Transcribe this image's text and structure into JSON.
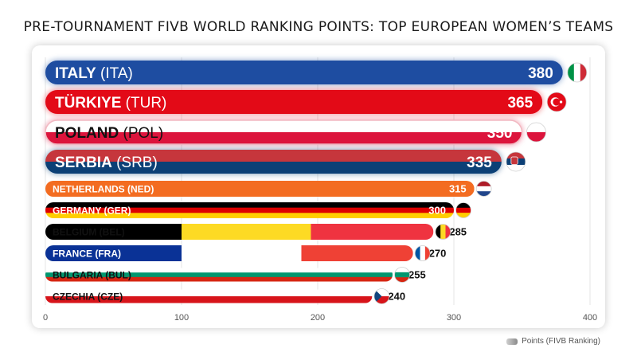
{
  "title": "PRE-TOURNAMENT FIVB WORLD RANKING POINTS: TOP EUROPEAN WOMEN’S TEAMS",
  "legend": {
    "label": "Points (FIVB Ranking)"
  },
  "chart_data": {
    "type": "bar",
    "orientation": "horizontal",
    "title": "PRE-TOURNAMENT FIVB WORLD RANKING POINTS: TOP EUROPEAN WOMEN’S TEAMS",
    "xlabel": "",
    "ylabel": "",
    "xlim": [
      0,
      400
    ],
    "xticks": [
      0,
      100,
      200,
      300,
      400
    ],
    "grid": true,
    "legend_position": "bottom-right",
    "series": [
      {
        "name": "Points (FIVB Ranking)",
        "values": [
          380,
          365,
          350,
          335,
          315,
          300,
          285,
          270,
          255,
          240
        ]
      }
    ],
    "bars": [
      {
        "name": "ITALY",
        "code": "(ITA)",
        "value": 380,
        "flag": "italy-flag-icon",
        "colors": [
          "#1e4da1"
        ],
        "flagColors": [
          "#009246",
          "#ffffff",
          "#ce2b37"
        ]
      },
      {
        "name": "TÜRKIYE",
        "code": "(TUR)",
        "value": 365,
        "flag": "turkiye-flag-icon",
        "colors": [
          "#e30a17"
        ],
        "flagColors": [
          "#e30a17"
        ]
      },
      {
        "name": "POLAND",
        "code": "(POL)",
        "value": 350,
        "flag": "poland-flag-icon",
        "colors": [
          "#ffffff",
          "#dc143c"
        ],
        "flagColors": [
          "#ffffff",
          "#dc143c"
        ]
      },
      {
        "name": "SERBIA",
        "code": "(SRB)",
        "value": 335,
        "flag": "serbia-flag-icon",
        "colors": [
          "#c6363c",
          "#0c4076"
        ],
        "flagColors": [
          "#c6363c",
          "#0c4076",
          "#ffffff"
        ]
      },
      {
        "name": "NETHERLANDS",
        "code": "(NED)",
        "value": 315,
        "flag": "netherlands-flag-icon",
        "colors": [
          "#f36c21"
        ],
        "flagColors": [
          "#ae1c28",
          "#ffffff",
          "#21468b"
        ]
      },
      {
        "name": "GERMANY",
        "code": "(GER)",
        "value": 300,
        "flag": "germany-flag-icon",
        "colors": [
          "#000000",
          "#dd0000",
          "#ffce00"
        ],
        "flagColors": [
          "#000000",
          "#dd0000",
          "#ffce00"
        ]
      },
      {
        "name": "BELGIUM",
        "code": "(BEL)",
        "value": 285,
        "flag": "belgium-flag-icon",
        "colors": [
          "#000000",
          "#fdda24",
          "#ef3340"
        ],
        "flagColors": [
          "#000000",
          "#fdda24",
          "#ef3340"
        ]
      },
      {
        "name": "FRANCE",
        "code": "(FRA)",
        "value": 270,
        "flag": "france-flag-icon",
        "colors": [
          "#0a3296",
          "#ffffff",
          "#ef4135"
        ],
        "flagColors": [
          "#0055a4",
          "#ffffff",
          "#ef4135"
        ]
      },
      {
        "name": "BULGARIA",
        "code": "(BUL)",
        "value": 255,
        "flag": "bulgaria-flag-icon",
        "colors": [
          "#ffffff",
          "#00966e",
          "#d62612"
        ],
        "flagColors": [
          "#ffffff",
          "#00966e",
          "#d62612"
        ]
      },
      {
        "name": "CZECHIA",
        "code": "(CZE)",
        "value": 240,
        "flag": "czechia-flag-icon",
        "colors": [
          "#ffffff",
          "#d7141a"
        ],
        "flagColors": [
          "#ffffff",
          "#d7141a",
          "#11457e"
        ]
      }
    ]
  }
}
